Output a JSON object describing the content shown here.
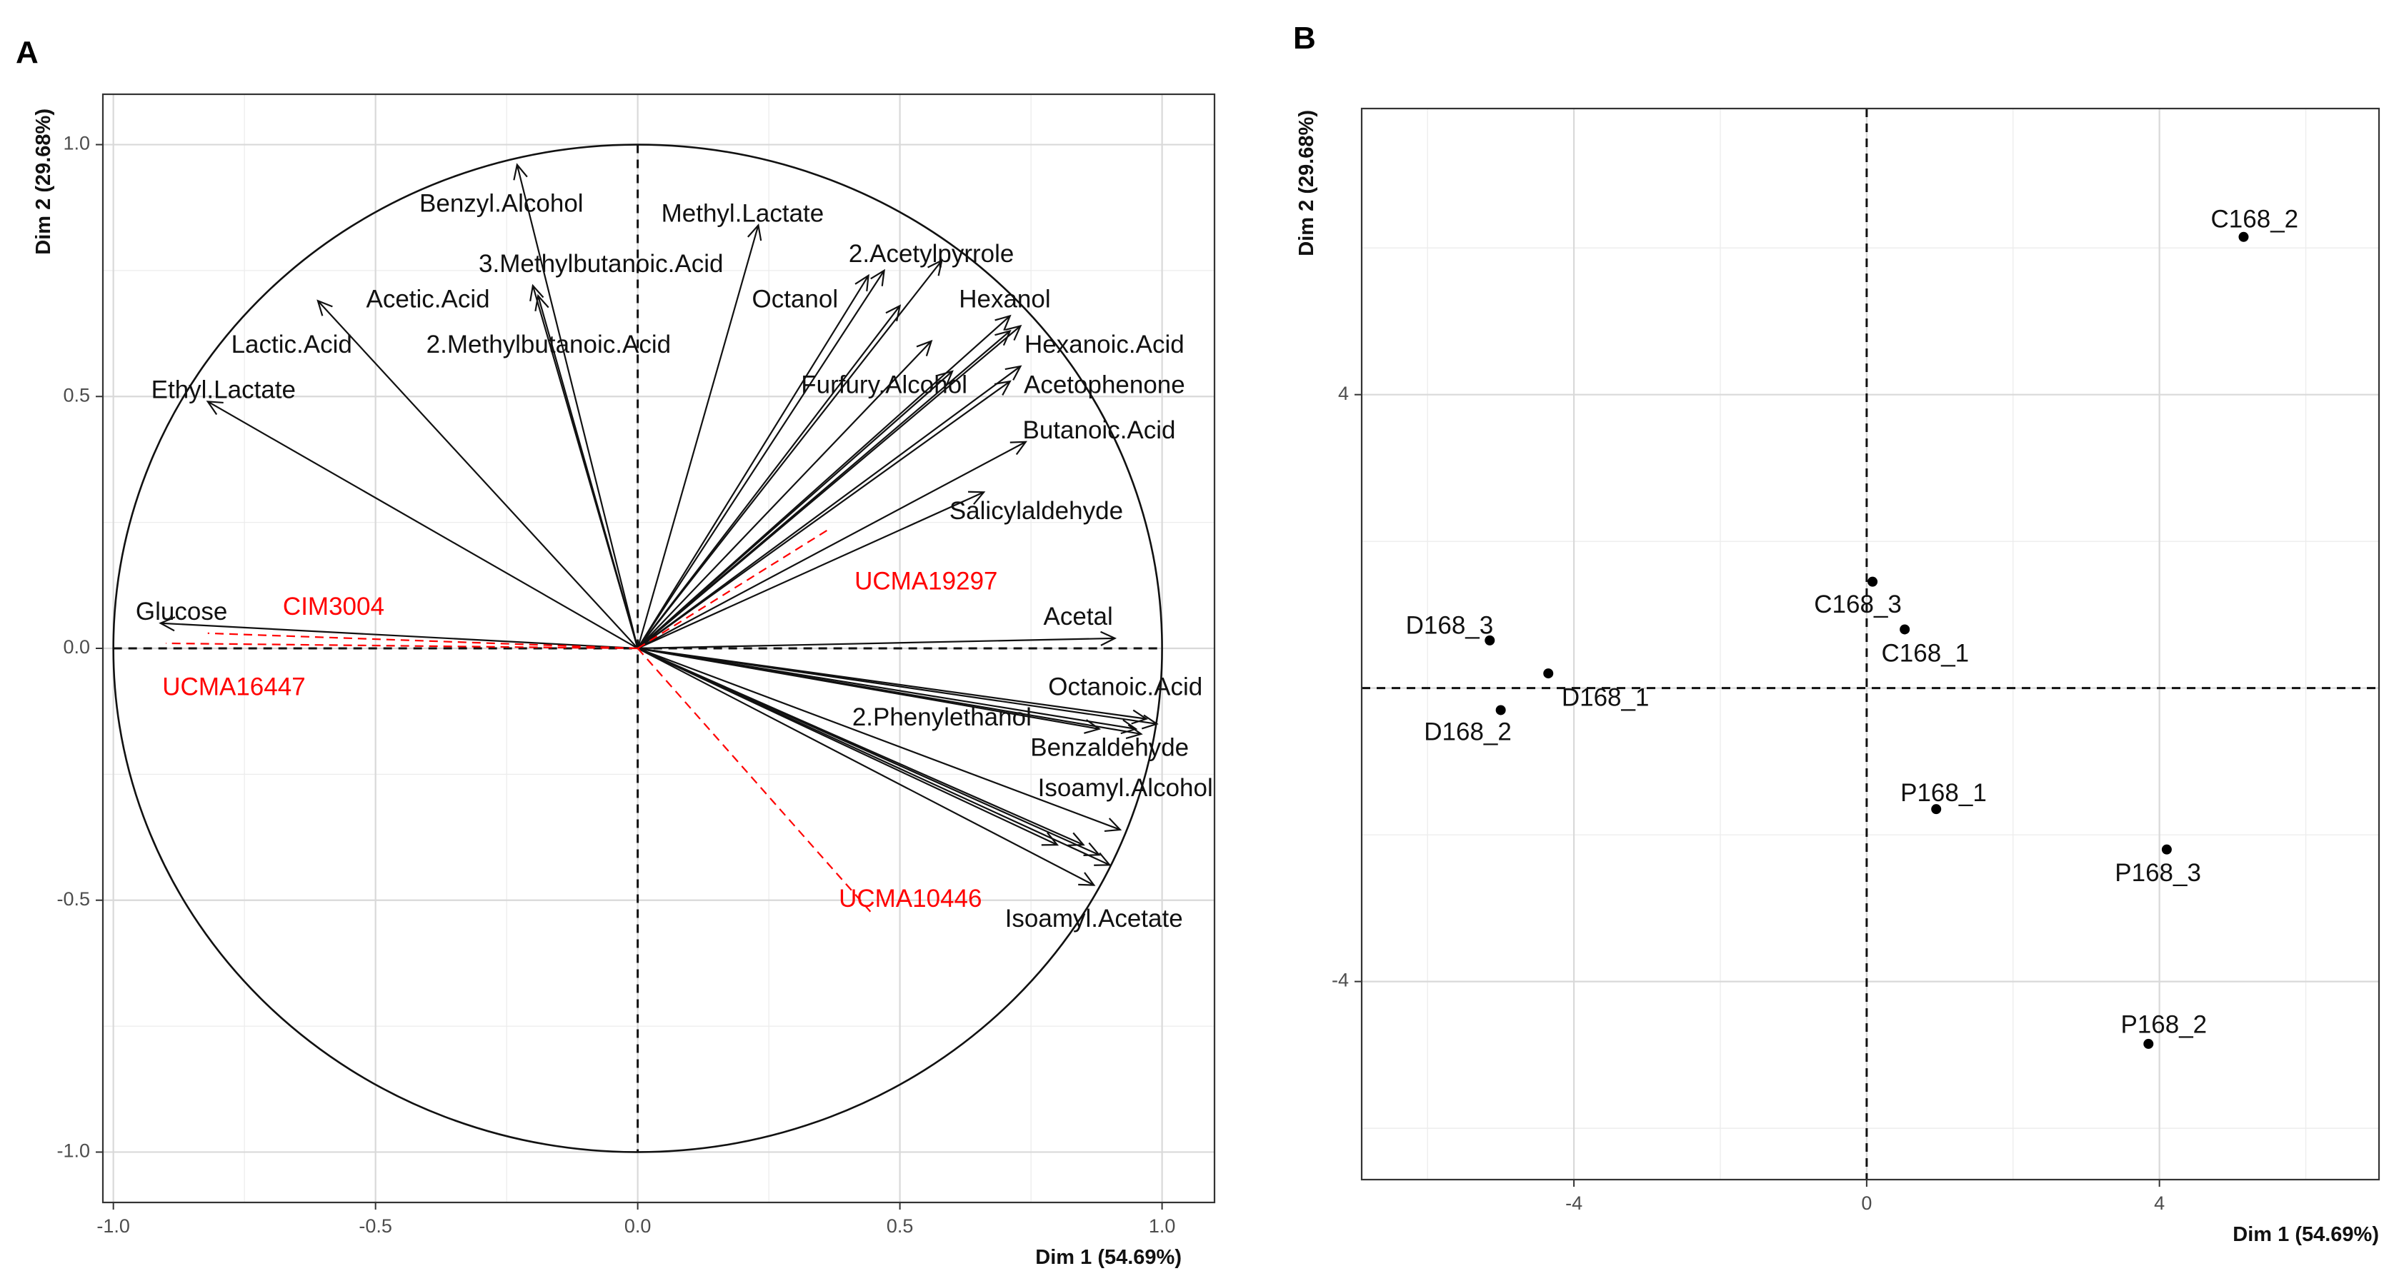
{
  "chart_data": [
    {
      "panel": "A",
      "type": "scatter",
      "subtype": "pca-correlation-circle",
      "xlabel": "Dim 1 (54.69%)",
      "ylabel": "Dim 2 (29.68%)",
      "xlim": [
        -1.02,
        1.1
      ],
      "ylim": [
        -1.1,
        1.1
      ],
      "xticks": [
        -1.0,
        -0.5,
        0.0,
        0.5,
        1.0
      ],
      "xtick_labels": [
        "-1.0",
        "-0.5",
        "0.0",
        "0.5",
        "1.0"
      ],
      "yticks": [
        -1.0,
        -0.5,
        0.0,
        0.5,
        1.0
      ],
      "ytick_labels": [
        "-1.0",
        "-0.5",
        "0.0",
        "0.5",
        "1.0"
      ],
      "grid": true,
      "unit_circle": true,
      "variables": [
        {
          "name": "Benzyl.Alcohol",
          "x": -0.23,
          "y": 0.96,
          "lx": -0.26,
          "ly": 0.88,
          "color": "black"
        },
        {
          "name": "Methyl.Lactate",
          "x": 0.23,
          "y": 0.84,
          "lx": 0.2,
          "ly": 0.86,
          "color": "black"
        },
        {
          "name": "3.Methylbutanoic.Acid",
          "x": -0.2,
          "y": 0.72,
          "lx": -0.07,
          "ly": 0.76,
          "color": "black"
        },
        {
          "name": "2.Acetylpyrrole",
          "x": 0.58,
          "y": 0.77,
          "lx": 0.56,
          "ly": 0.78,
          "color": "black"
        },
        {
          "name": "Octanol",
          "x": 0.47,
          "y": 0.75,
          "lx": 0.3,
          "ly": 0.69,
          "color": "black"
        },
        {
          "name": "Acetic.Acid",
          "x": -0.19,
          "y": 0.7,
          "lx": -0.4,
          "ly": 0.69,
          "color": "black"
        },
        {
          "name": "Hexanol",
          "x": 0.71,
          "y": 0.66,
          "lx": 0.7,
          "ly": 0.69,
          "color": "black"
        },
        {
          "name": "Lactic.Acid",
          "x": -0.61,
          "y": 0.69,
          "lx": -0.66,
          "ly": 0.6,
          "color": "black"
        },
        {
          "name": "2.Methylbutanoic.Acid",
          "x": 0.56,
          "y": 0.61,
          "lx": -0.17,
          "ly": 0.6,
          "color": "black"
        },
        {
          "name": "Hexanoic.Acid",
          "x": 0.71,
          "y": 0.63,
          "lx": 0.89,
          "ly": 0.6,
          "color": "black"
        },
        {
          "name": "Furfury.Alcohol",
          "x": 0.6,
          "y": 0.55,
          "lx": 0.47,
          "ly": 0.52,
          "color": "black"
        },
        {
          "name": "Acetophenone",
          "x": 0.71,
          "y": 0.53,
          "lx": 0.89,
          "ly": 0.52,
          "color": "black"
        },
        {
          "name": "Ethyl.Lactate",
          "x": -0.82,
          "y": 0.49,
          "lx": -0.79,
          "ly": 0.51,
          "color": "black"
        },
        {
          "name": "Butanoic.Acid",
          "x": 0.74,
          "y": 0.41,
          "lx": 0.88,
          "ly": 0.43,
          "color": "black"
        },
        {
          "name": "Salicylaldehyde",
          "x": 0.66,
          "y": 0.31,
          "lx": 0.76,
          "ly": 0.27,
          "color": "black"
        },
        {
          "name": "Glucose",
          "x": -0.91,
          "y": 0.05,
          "lx": -0.87,
          "ly": 0.07,
          "color": "black"
        },
        {
          "name": "Acetal",
          "x": 0.91,
          "y": 0.02,
          "lx": 0.84,
          "ly": 0.06,
          "color": "black"
        },
        {
          "name": "Octanoic.Acid",
          "x": 0.99,
          "y": -0.15,
          "lx": 0.93,
          "ly": -0.08,
          "color": "black"
        },
        {
          "name": "2.Phenylethanol",
          "x": 0.88,
          "y": -0.16,
          "lx": 0.58,
          "ly": -0.14,
          "color": "black"
        },
        {
          "name": "Benzaldehyde",
          "x": 0.96,
          "y": -0.17,
          "lx": 0.9,
          "ly": -0.2,
          "color": "black"
        },
        {
          "name": "Isoamyl.Alcohol",
          "x": 0.92,
          "y": -0.36,
          "lx": 0.93,
          "ly": -0.28,
          "color": "black"
        },
        {
          "name": "Isoamyl.Acetate",
          "x": 0.87,
          "y": -0.47,
          "lx": 0.87,
          "ly": -0.54,
          "color": "black"
        },
        {
          "name": "",
          "x": 0.97,
          "y": -0.14,
          "lx": 0,
          "ly": 0,
          "color": "black"
        },
        {
          "name": "",
          "x": 0.95,
          "y": -0.16,
          "lx": 0,
          "ly": 0,
          "color": "black"
        },
        {
          "name": "",
          "x": 0.88,
          "y": -0.41,
          "lx": 0,
          "ly": 0,
          "color": "black"
        },
        {
          "name": "",
          "x": 0.9,
          "y": -0.43,
          "lx": 0,
          "ly": 0,
          "color": "black"
        },
        {
          "name": "",
          "x": 0.8,
          "y": -0.39,
          "lx": 0,
          "ly": 0,
          "color": "black"
        },
        {
          "name": "",
          "x": 0.85,
          "y": -0.39,
          "lx": 0,
          "ly": 0,
          "color": "black"
        },
        {
          "name": "",
          "x": 0.73,
          "y": 0.64,
          "lx": 0,
          "ly": 0,
          "color": "black"
        },
        {
          "name": "",
          "x": 0.73,
          "y": 0.56,
          "lx": 0,
          "ly": 0,
          "color": "black"
        },
        {
          "name": "",
          "x": 0.44,
          "y": 0.74,
          "lx": 0,
          "ly": 0,
          "color": "black"
        },
        {
          "name": "",
          "x": 0.5,
          "y": 0.68,
          "lx": 0,
          "ly": 0,
          "color": "black"
        },
        {
          "name": "CIM3004",
          "x": -0.82,
          "y": 0.03,
          "lx": -0.58,
          "ly": 0.08,
          "color": "red"
        },
        {
          "name": "UCMA16447",
          "x": -0.9,
          "y": 0.01,
          "lx": -0.77,
          "ly": -0.08,
          "color": "red"
        },
        {
          "name": "UCMA19297",
          "x": 0.37,
          "y": 0.24,
          "lx": 0.55,
          "ly": 0.13,
          "color": "red"
        },
        {
          "name": "UCMA10446",
          "x": 0.45,
          "y": -0.53,
          "lx": 0.52,
          "ly": -0.5,
          "color": "red"
        }
      ]
    },
    {
      "panel": "B",
      "type": "scatter",
      "xlabel": "Dim 1 (54.69%)",
      "ylabel": "Dim 2 (29.68%)",
      "xlim": [
        -6.9,
        7.0
      ],
      "ylim": [
        -6.7,
        7.9
      ],
      "xticks": [
        -4,
        0,
        4
      ],
      "xtick_labels": [
        "-4",
        "0",
        "4"
      ],
      "yticks": [
        -4,
        4
      ],
      "ytick_labels": [
        "-4",
        "4"
      ],
      "grid": true,
      "points": [
        {
          "name": "C168_2",
          "x": 5.15,
          "y": 6.15,
          "lx": 5.3,
          "ly": 6.37
        },
        {
          "name": "C168_3",
          "x": 0.08,
          "y": 1.45,
          "lx": -0.12,
          "ly": 1.12
        },
        {
          "name": "C168_1",
          "x": 0.52,
          "y": 0.8,
          "lx": 0.8,
          "ly": 0.45
        },
        {
          "name": "D168_3",
          "x": -5.15,
          "y": 0.65,
          "lx": -5.7,
          "ly": 0.83
        },
        {
          "name": "D168_1",
          "x": -4.35,
          "y": 0.2,
          "lx": -3.57,
          "ly": -0.15
        },
        {
          "name": "D168_2",
          "x": -5.0,
          "y": -0.3,
          "lx": -5.45,
          "ly": -0.62
        },
        {
          "name": "P168_1",
          "x": 0.95,
          "y": -1.65,
          "lx": 1.05,
          "ly": -1.45
        },
        {
          "name": "P168_3",
          "x": 4.1,
          "y": -2.2,
          "lx": 3.98,
          "ly": -2.54
        },
        {
          "name": "P168_2",
          "x": 3.85,
          "y": -4.85,
          "lx": 4.06,
          "ly": -4.61
        }
      ]
    }
  ]
}
